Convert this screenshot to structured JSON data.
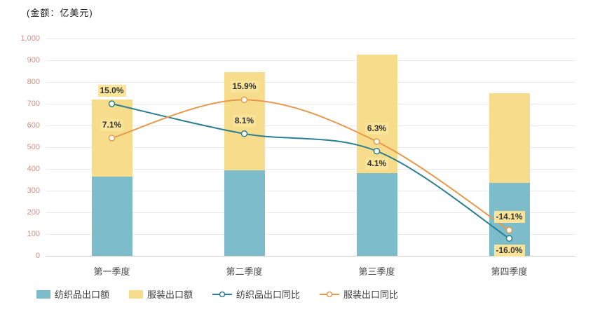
{
  "unit_label": "(金额：亿美元)",
  "chart_data": {
    "type": "bar",
    "subtype": "stacked-bars-with-smooth-lines",
    "categories": [
      "第一季度",
      "第二季度",
      "第三季度",
      "第四季度"
    ],
    "bar_series": [
      {
        "name": "纺织品出口额",
        "color": "#7dbccb",
        "values": [
          365,
          395,
          380,
          335
        ]
      },
      {
        "name": "服装出口额",
        "color": "#f7dd8b",
        "values": [
          355,
          450,
          545,
          415
        ]
      }
    ],
    "line_series": [
      {
        "name": "纺织品出口同比",
        "color": "#2b7f92",
        "values_pct": [
          15.0,
          8.1,
          4.1,
          -16.0
        ],
        "point_labels": [
          "15.0%",
          "8.1%",
          "4.1%",
          "-16.0%"
        ],
        "label_side": [
          "above",
          "above",
          "below",
          "below"
        ]
      },
      {
        "name": "服装出口同比",
        "color": "#e79a4e",
        "values_pct": [
          7.1,
          15.9,
          6.3,
          -14.1
        ],
        "point_labels": [
          "7.1%",
          "15.9%",
          "6.3%",
          "-14.1%"
        ],
        "label_side": [
          "above",
          "above",
          "above",
          "above"
        ]
      }
    ],
    "title": "",
    "xlabel": "",
    "ylabel": "",
    "ylim": [
      0,
      1000
    ],
    "ytick_labels": [
      "0",
      "100",
      "200",
      "300",
      "400",
      "500",
      "600",
      "700",
      "800",
      "900",
      "1,000"
    ],
    "y2lim": [
      -20,
      30
    ],
    "grid": true,
    "legend_position": "bottom",
    "label_bg": "#f9e49a"
  }
}
